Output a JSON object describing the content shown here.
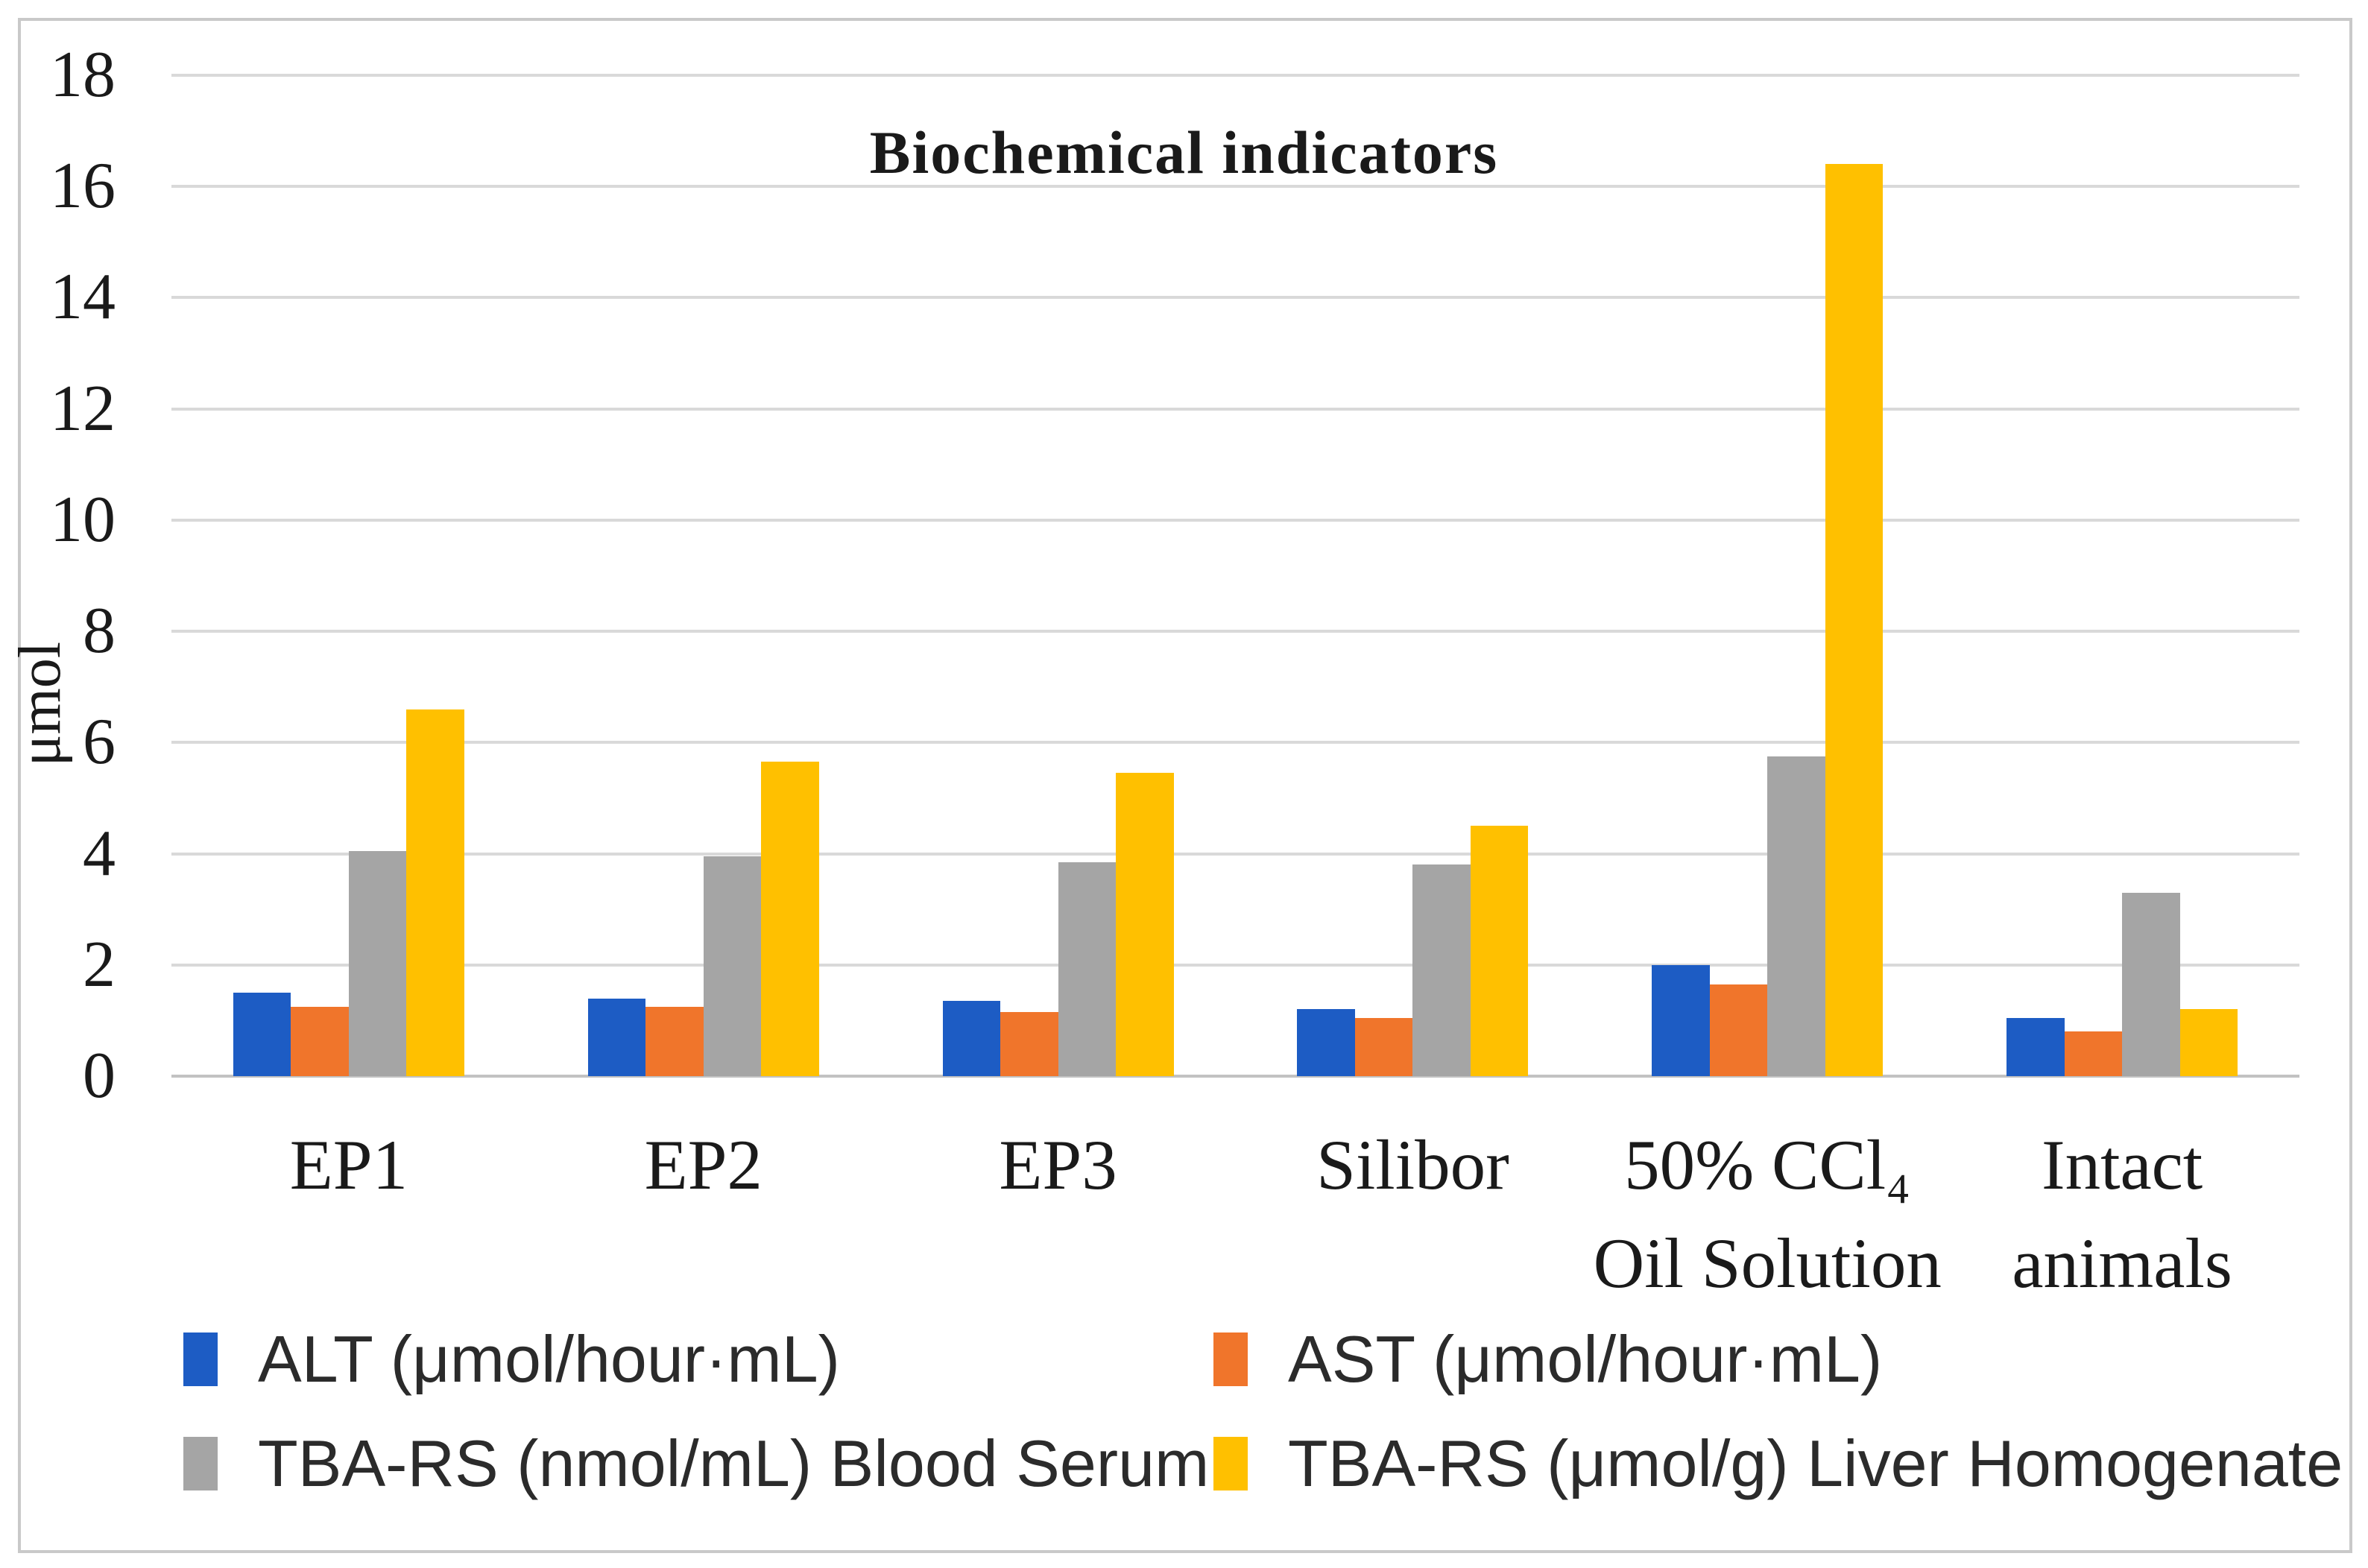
{
  "chart_data": {
    "type": "bar",
    "title": "Biochemical indicators",
    "xlabel": "",
    "ylabel": "μmol",
    "ylim": [
      0,
      18
    ],
    "ytick_step": 2,
    "grid": true,
    "legend_position": "bottom",
    "categories": [
      "EP1",
      "EP2",
      "EP3",
      "Silibor",
      "50% CCl₄ Oil Solution",
      "Intact animals"
    ],
    "category_lines": [
      [
        "EP1"
      ],
      [
        "EP2"
      ],
      [
        "EP3"
      ],
      [
        "Silibor"
      ],
      [
        "50% CCl₄",
        "Oil Solution"
      ],
      [
        "Intact",
        "animals"
      ]
    ],
    "series": [
      {
        "name": "ALT (μmol/hour·mL)",
        "color": "#1d5cc4",
        "values": [
          1.5,
          1.4,
          1.35,
          1.2,
          2.0,
          1.05
        ]
      },
      {
        "name": "AST (μmol/hour·mL)",
        "color": "#f0752b",
        "values": [
          1.25,
          1.25,
          1.15,
          1.05,
          1.65,
          0.8
        ]
      },
      {
        "name": "TBA-RS (nmol/mL) Blood Serum",
        "color": "#a5a5a5",
        "values": [
          4.05,
          3.95,
          3.85,
          3.8,
          5.75,
          3.3
        ]
      },
      {
        "name": "TBA-RS (μmol/g) Liver Homogenate",
        "color": "#ffc000",
        "values": [
          6.6,
          5.65,
          5.45,
          4.5,
          16.4,
          1.2
        ]
      }
    ],
    "colors": {
      "gridline": "#d9d9d9",
      "zero_line": "#c2c2c2",
      "frame_border": "#c9c9c9",
      "text": "#1a1a1a"
    }
  }
}
